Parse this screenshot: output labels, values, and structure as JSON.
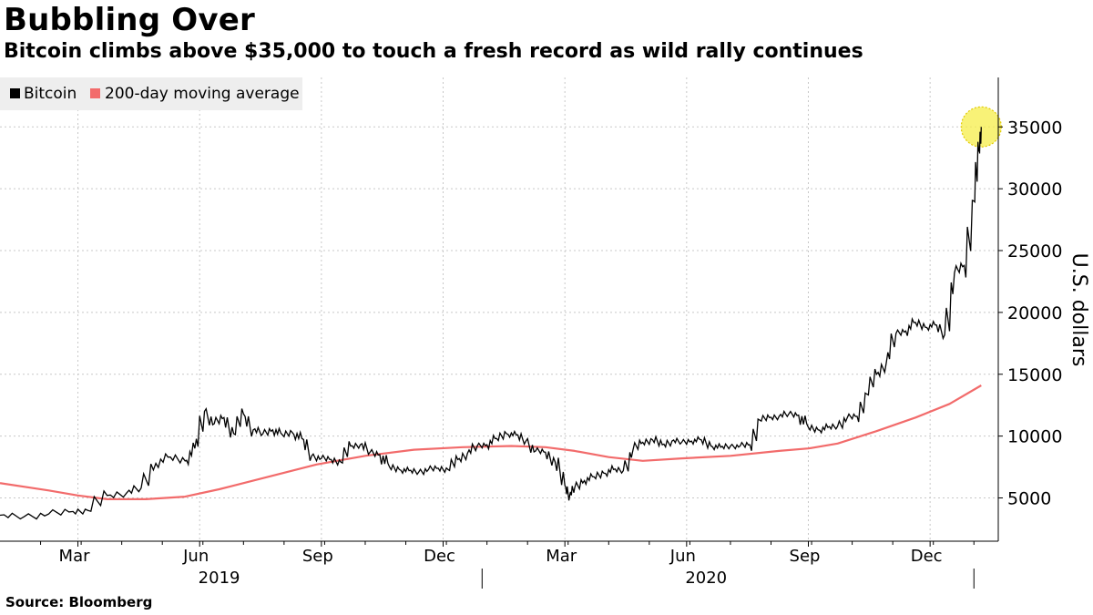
{
  "header": {
    "title": "Bubbling Over",
    "subtitle": "Bitcoin climbs above $35,000 to touch a fresh record as wild rally continues"
  },
  "footer": {
    "source": "Source: Bloomberg"
  },
  "chart_data": {
    "type": "line",
    "title": "Bubbling Over",
    "subtitle": "Bitcoin climbs above $35,000 to touch a fresh record as wild rally continues",
    "ylabel": "U.S. dollars",
    "ylim": [
      1500,
      39000
    ],
    "xlim": [
      2019.0,
      2021.05
    ],
    "yticks": [
      5000,
      10000,
      15000,
      20000,
      25000,
      30000,
      35000
    ],
    "ytick_labels": [
      "5000",
      "10000",
      "15000",
      "20000",
      "25000",
      "30000",
      "35000"
    ],
    "xticks": [
      {
        "label": "Mar",
        "t": 2019.16
      },
      {
        "label": "Jun",
        "t": 2019.41
      },
      {
        "label": "Sep",
        "t": 2019.66
      },
      {
        "label": "Dec",
        "t": 2019.91
      },
      {
        "label": "Mar",
        "t": 2020.16
      },
      {
        "label": "Jun",
        "t": 2020.41
      },
      {
        "label": "Sep",
        "t": 2020.66
      },
      {
        "label": "Dec",
        "t": 2020.91
      }
    ],
    "years": [
      {
        "label": "2019",
        "t": 2019.45
      },
      {
        "label": "2020",
        "t": 2020.45
      }
    ],
    "year_dividers": [
      2019.99,
      2021.0
    ],
    "legend": [
      "Bitcoin",
      "200-day moving average"
    ],
    "legend_position": "top-left",
    "colors": {
      "bitcoin": "#000000",
      "ma200": "#f26b6b",
      "highlight": "#f5ee4a"
    },
    "highlight_point": {
      "t": 2021.015,
      "y": 35000
    },
    "series": [
      {
        "name": "Bitcoin",
        "x": [
          2019.0,
          2019.05,
          2019.1,
          2019.15,
          2019.18,
          2019.22,
          2019.26,
          2019.29,
          2019.32,
          2019.35,
          2019.38,
          2019.4,
          2019.42,
          2019.44,
          2019.46,
          2019.48,
          2019.5,
          2019.52,
          2019.54,
          2019.56,
          2019.58,
          2019.6,
          2019.62,
          2019.64,
          2019.66,
          2019.68,
          2019.7,
          2019.72,
          2019.74,
          2019.76,
          2019.78,
          2019.8,
          2019.82,
          2019.84,
          2019.86,
          2019.88,
          2019.9,
          2019.92,
          2019.94,
          2019.96,
          2019.98,
          2020.0,
          2020.02,
          2020.04,
          2020.06,
          2020.08,
          2020.1,
          2020.12,
          2020.14,
          2020.16,
          2020.17,
          2020.18,
          2020.2,
          2020.22,
          2020.24,
          2020.26,
          2020.28,
          2020.3,
          2020.32,
          2020.34,
          2020.36,
          2020.38,
          2020.4,
          2020.42,
          2020.44,
          2020.46,
          2020.48,
          2020.5,
          2020.52,
          2020.54,
          2020.56,
          2020.58,
          2020.6,
          2020.62,
          2020.64,
          2020.66,
          2020.68,
          2020.7,
          2020.72,
          2020.74,
          2020.76,
          2020.78,
          2020.8,
          2020.82,
          2020.84,
          2020.86,
          2020.88,
          2020.9,
          2020.92,
          2020.94,
          2020.96,
          2020.98,
          2021.0,
          2021.01,
          2021.015
        ],
        "values": [
          3600,
          3500,
          3700,
          3900,
          4000,
          5200,
          5400,
          5800,
          7800,
          8300,
          8000,
          9000,
          12000,
          11000,
          11500,
          10200,
          11800,
          10500,
          10200,
          10500,
          10100,
          10300,
          9800,
          8400,
          8200,
          8100,
          7900,
          9200,
          9300,
          8700,
          8500,
          7500,
          7300,
          7200,
          7100,
          7300,
          7400,
          7300,
          8100,
          8600,
          9200,
          9300,
          9800,
          10200,
          10100,
          9600,
          8800,
          8700,
          7900,
          6000,
          5200,
          5800,
          6400,
          6700,
          7000,
          7300,
          7200,
          8900,
          9500,
          9700,
          9300,
          9600,
          9500,
          9600,
          9700,
          9200,
          9100,
          9200,
          9200,
          9300,
          11300,
          11500,
          11600,
          11800,
          11700,
          10700,
          10500,
          10700,
          10800,
          11500,
          11600,
          13400,
          15000,
          15900,
          18300,
          18500,
          19200,
          18800,
          19000,
          18200,
          23200,
          23800,
          29000,
          33000,
          35000
        ]
      },
      {
        "name": "200-day moving average",
        "x": [
          2019.0,
          2019.1,
          2019.16,
          2019.22,
          2019.3,
          2019.38,
          2019.45,
          2019.55,
          2019.65,
          2019.75,
          2019.85,
          2019.95,
          2020.05,
          2020.12,
          2020.18,
          2020.25,
          2020.32,
          2020.4,
          2020.5,
          2020.6,
          2020.66,
          2020.72,
          2020.8,
          2020.88,
          2020.95,
          2021.015
        ],
        "values": [
          6200,
          5600,
          5200,
          4900,
          4900,
          5100,
          5700,
          6700,
          7700,
          8400,
          8900,
          9100,
          9200,
          9100,
          8800,
          8300,
          8000,
          8200,
          8400,
          8800,
          9000,
          9400,
          10400,
          11500,
          12600,
          14100
        ]
      }
    ]
  }
}
